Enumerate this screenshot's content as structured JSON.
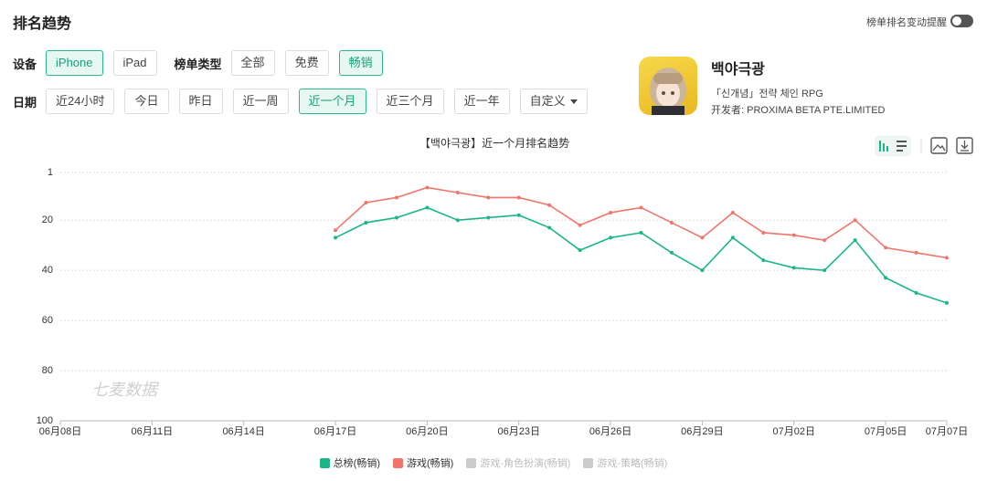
{
  "header": {
    "title": "排名趋势",
    "toggle_label": "榜单排名变动提醒"
  },
  "filters": {
    "device": {
      "label": "设备",
      "options": [
        "iPhone",
        "iPad"
      ],
      "selected": 0
    },
    "list_type": {
      "label": "榜单类型",
      "options": [
        "全部",
        "免费",
        "畅销"
      ],
      "selected": 2
    },
    "date": {
      "label": "日期",
      "options": [
        "近24小时",
        "今日",
        "昨日",
        "近一周",
        "近一个月",
        "近三个月",
        "近一年",
        "自定义"
      ],
      "selected": 4
    }
  },
  "app": {
    "name": "백야극광",
    "subtitle": "「신개념」전략 체인 RPG",
    "developer": "开发者: PROXIMA BETA PTE.LIMITED"
  },
  "chart_data": {
    "type": "line",
    "title": "【백야극광】近一个月排名趋势",
    "watermark": "七麦数据",
    "categories": [
      "06月08日",
      null,
      null,
      "06月11日",
      null,
      null,
      "06月14日",
      null,
      null,
      "06月17日",
      null,
      null,
      "06月20日",
      null,
      null,
      "06月23日",
      null,
      null,
      "06月26日",
      null,
      null,
      "06月29日",
      null,
      null,
      "07月02日",
      null,
      null,
      "07月05日",
      null,
      "07月07日"
    ],
    "series": [
      {
        "name": "总榜(畅销)",
        "color": "#1bb58a",
        "visible": true,
        "values": [
          null,
          null,
          null,
          null,
          null,
          null,
          null,
          null,
          null,
          27,
          21,
          19,
          15,
          20,
          19,
          18,
          23,
          32,
          27,
          25,
          33,
          40,
          27,
          36,
          39,
          40,
          28,
          43,
          49,
          53
        ]
      },
      {
        "name": "游戏(畅销)",
        "color": "#f0766b",
        "visible": true,
        "values": [
          null,
          null,
          null,
          null,
          null,
          null,
          null,
          null,
          null,
          24,
          13,
          11,
          7,
          9,
          11,
          11,
          14,
          22,
          17,
          15,
          21,
          27,
          17,
          25,
          26,
          28,
          20,
          31,
          33,
          35
        ]
      },
      {
        "name": "游戏-角色扮演(畅销)",
        "color": "#cccccc",
        "visible": false,
        "values": [
          null,
          null,
          null,
          null,
          null,
          null,
          null,
          null,
          null,
          null,
          null,
          null,
          null,
          null,
          null,
          null,
          null,
          null,
          null,
          null,
          null,
          null,
          null,
          null,
          null,
          null,
          null,
          null,
          null,
          null
        ]
      },
      {
        "name": "游戏-策略(畅销)",
        "color": "#cccccc",
        "visible": false,
        "values": [
          null,
          null,
          null,
          null,
          null,
          null,
          null,
          null,
          null,
          null,
          null,
          null,
          null,
          null,
          null,
          null,
          null,
          null,
          null,
          null,
          null,
          null,
          null,
          null,
          null,
          null,
          null,
          null,
          null,
          null
        ]
      }
    ],
    "ylim": [
      1,
      100
    ],
    "yticks": [
      1,
      20,
      40,
      60,
      80,
      100
    ],
    "y_inverted": true,
    "grid": true
  }
}
